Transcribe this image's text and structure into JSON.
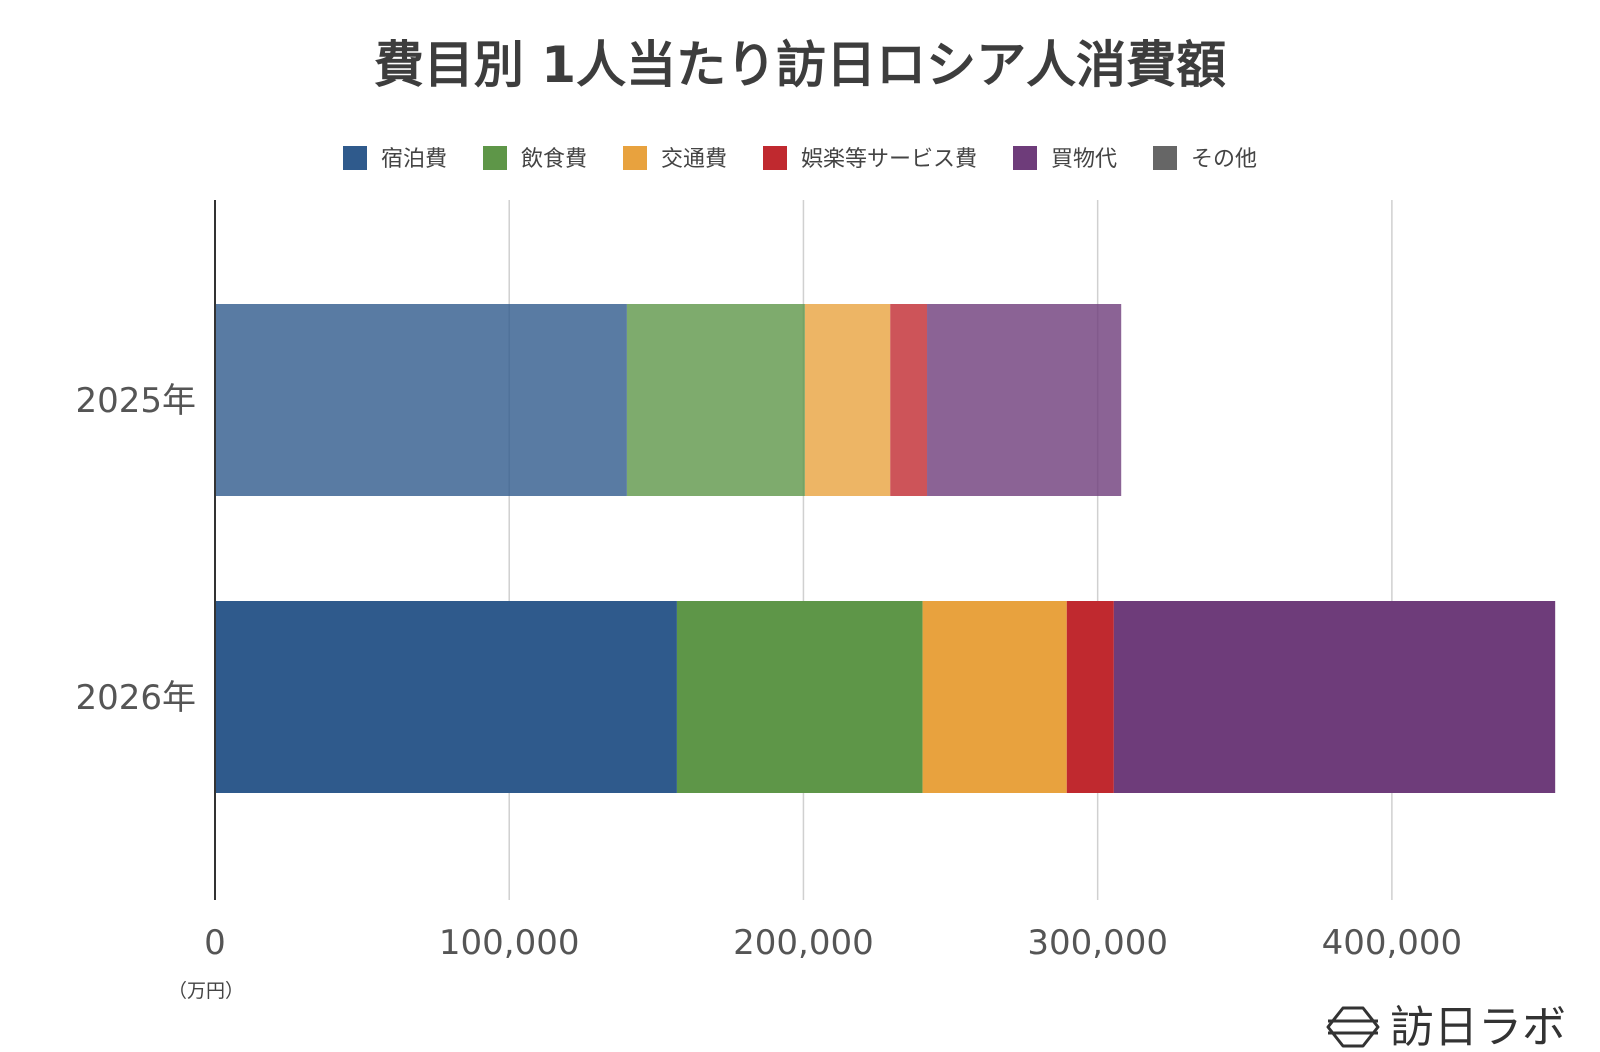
{
  "chart_data": {
    "type": "bar",
    "orientation": "horizontal",
    "stacked": true,
    "title": "費目別 1人当たり訪日ロシア人消費額",
    "unit_label": "（万円）",
    "categories": [
      "2025年",
      "2026年"
    ],
    "series": [
      {
        "name": "宿泊費",
        "values": [
          140000,
          157000
        ],
        "color": "#2f5a8c"
      },
      {
        "name": "飲食費",
        "values": [
          60500,
          83500
        ],
        "color": "#5e9648"
      },
      {
        "name": "交通費",
        "values": [
          29000,
          49000
        ],
        "color": "#e8a23e"
      },
      {
        "name": "娯楽等サービス費",
        "values": [
          12500,
          16000
        ],
        "color": "#c0292f"
      },
      {
        "name": "買物代",
        "values": [
          66000,
          150000
        ],
        "color": "#6e3c7a"
      },
      {
        "name": "その他",
        "values": [
          0,
          0
        ],
        "color": "#666666"
      }
    ],
    "xlim": [
      0,
      450000
    ],
    "x_ticks": [
      0,
      100000,
      200000,
      300000,
      400000
    ],
    "x_tick_labels": [
      "0",
      "100,000",
      "200,000",
      "300,000",
      "400,000"
    ],
    "grid": true,
    "legend_position": "top",
    "first_category_opacity": 0.8
  },
  "watermark": {
    "text": "訪日ラボ",
    "icon": "hexagon-logo-icon"
  }
}
